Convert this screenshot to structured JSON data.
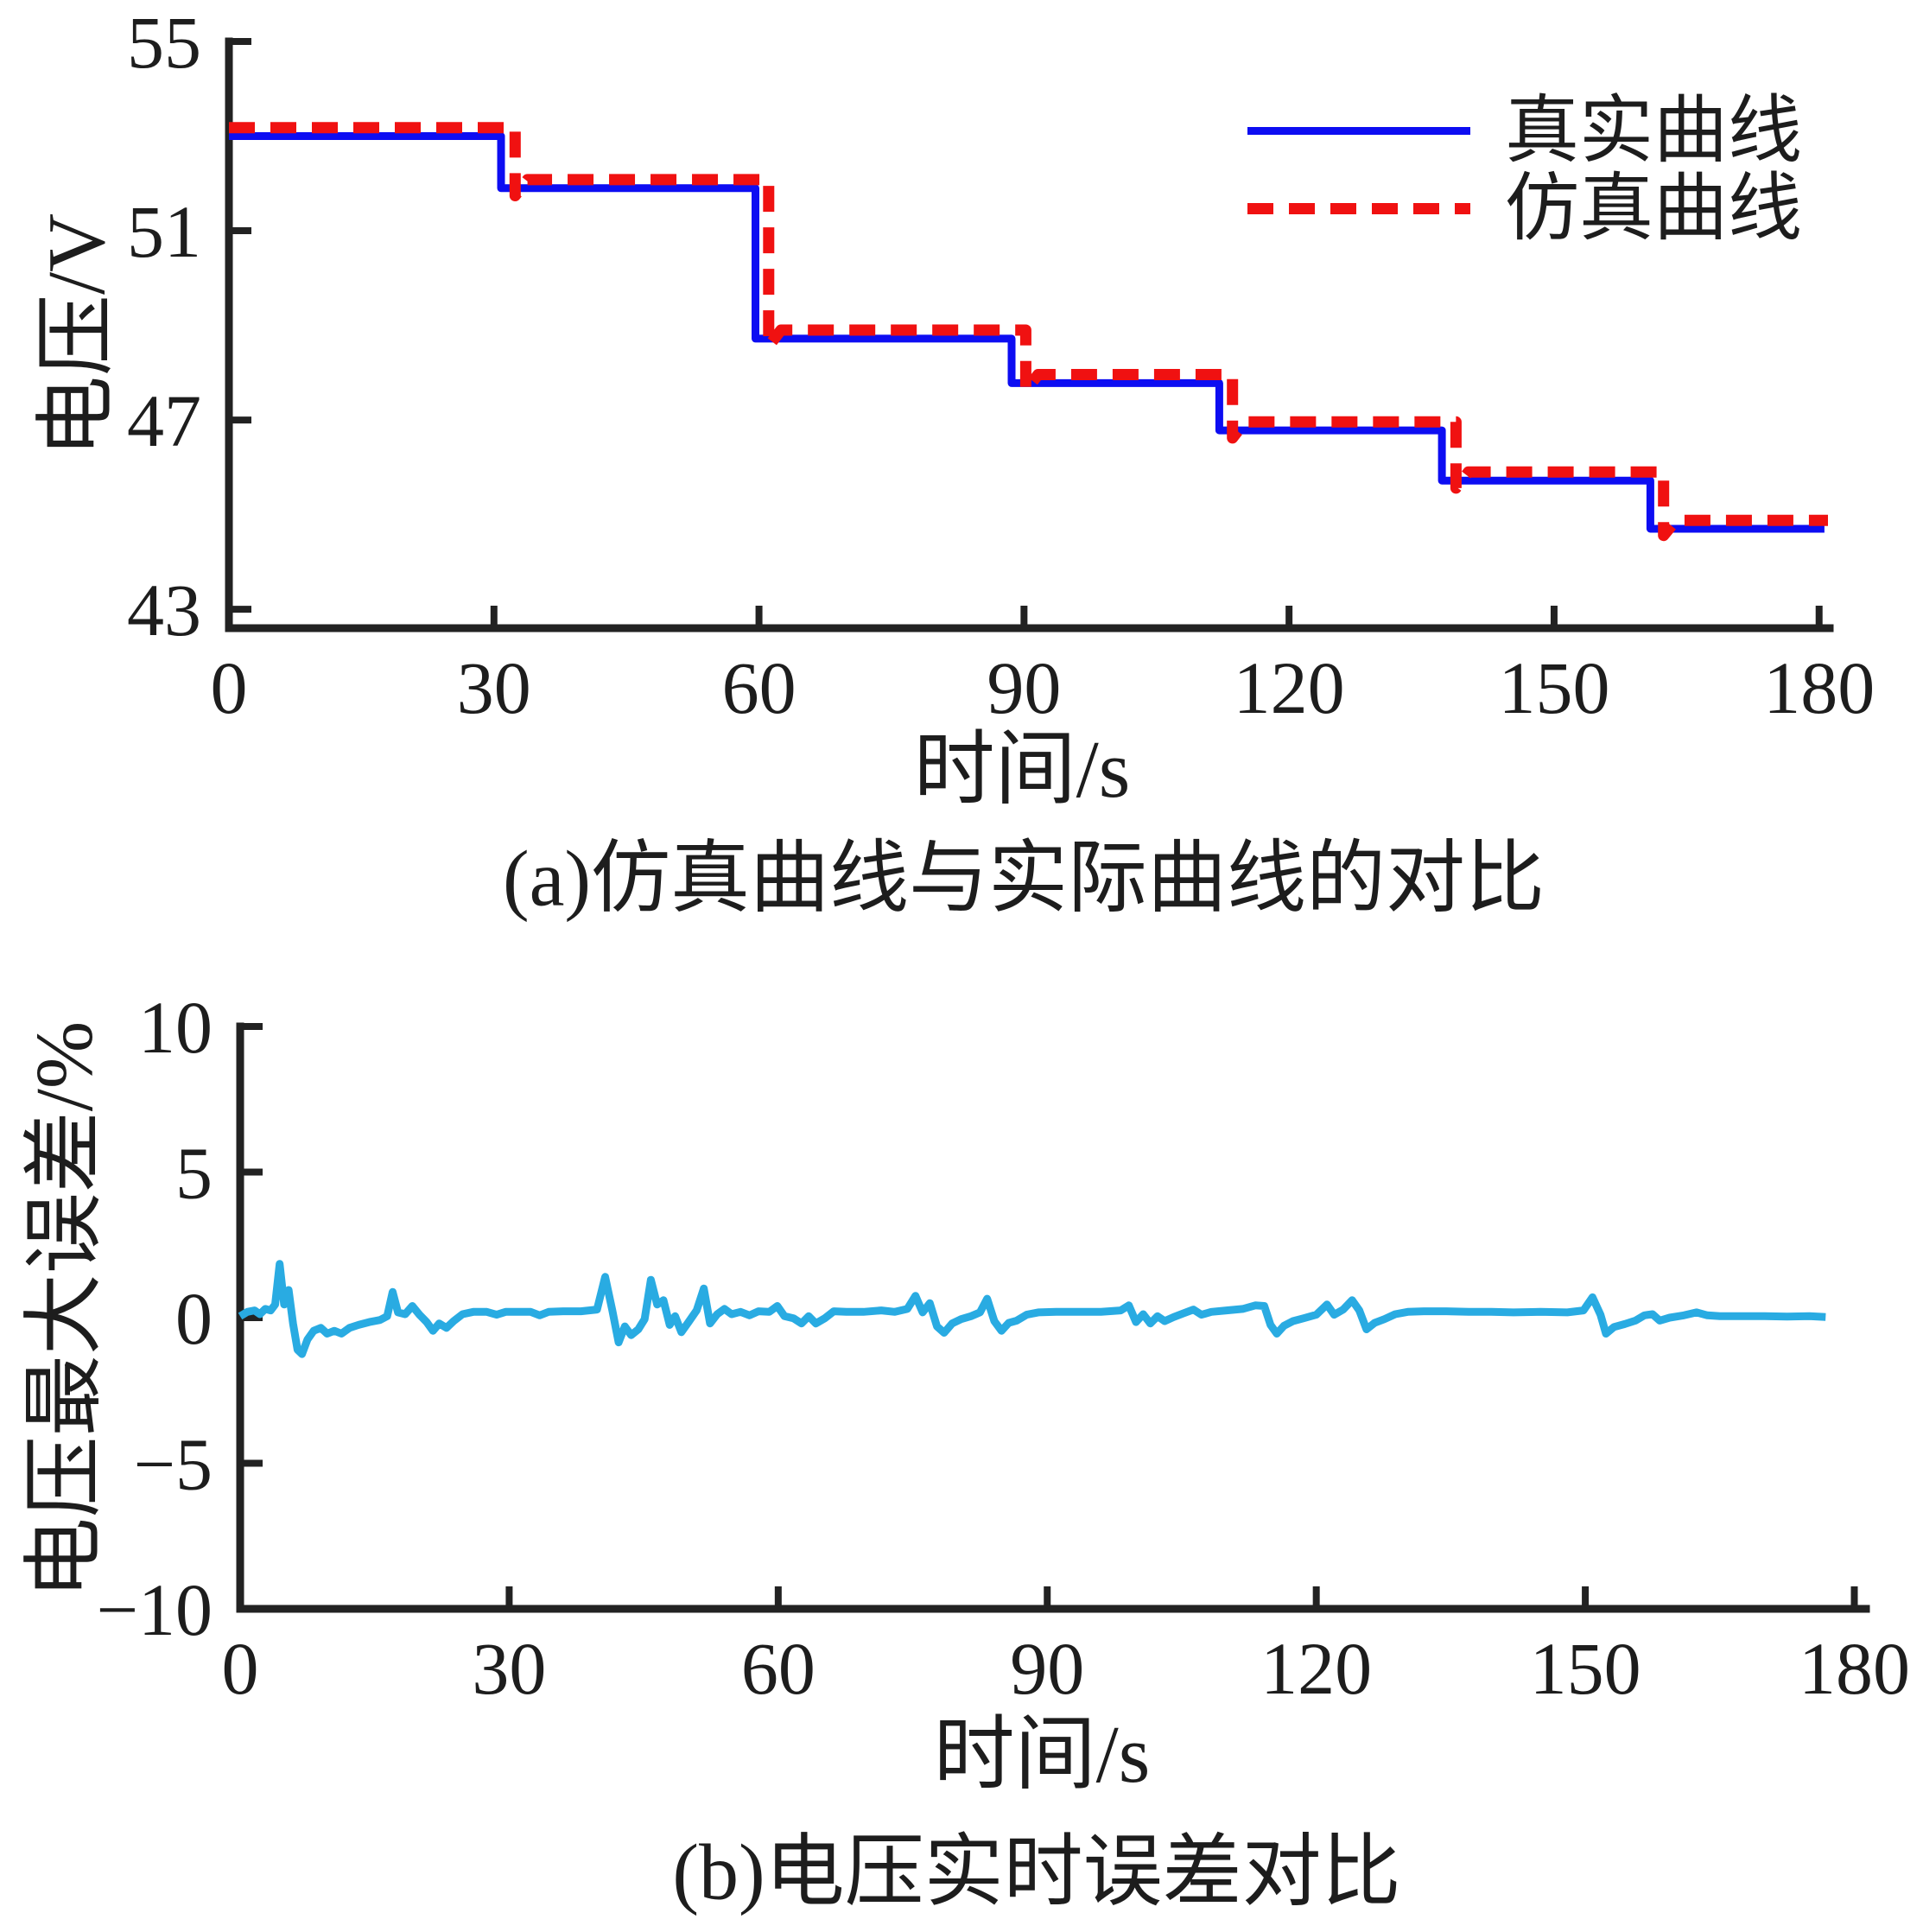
{
  "figure": {
    "background_color": "#ffffff",
    "text_color": "#1d1d1d",
    "axis_color": "#222222"
  },
  "chart_data": [
    {
      "id": "a",
      "type": "line",
      "caption": "(a)仿真曲线与实际曲线的对比",
      "xlabel": "时间/s",
      "ylabel": "电压/V",
      "xlim": [
        0,
        181.2
      ],
      "ylim": [
        42.6,
        55
      ],
      "xticks": [
        0,
        30,
        60,
        90,
        120,
        150,
        180
      ],
      "yticks": [
        55,
        51,
        47,
        43
      ],
      "grid": false,
      "legend": {
        "position": "top-right",
        "box": false,
        "entries": [
          {
            "label": "真实曲线",
            "color": "#0d0df2",
            "dash": false
          },
          {
            "label": "仿真曲线",
            "color": "#f01111",
            "dash": true
          }
        ]
      },
      "series": [
        {
          "name": "真实曲线",
          "color": "#0d0df2",
          "dash": false,
          "width": 9,
          "points": [
            [
              0,
              53.0
            ],
            [
              30.8,
              53.0
            ],
            [
              30.8,
              51.9
            ],
            [
              59.6,
              51.9
            ],
            [
              59.6,
              48.72
            ],
            [
              88.6,
              48.72
            ],
            [
              88.6,
              47.78
            ],
            [
              112.1,
              47.78
            ],
            [
              112.1,
              46.78
            ],
            [
              137.3,
              46.78
            ],
            [
              137.3,
              45.72
            ],
            [
              160.9,
              45.72
            ],
            [
              160.9,
              44.7
            ],
            [
              180.6,
              44.7
            ]
          ]
        },
        {
          "name": "仿真曲线",
          "color": "#f01111",
          "dash": true,
          "width": 13,
          "points": [
            [
              0,
              53.18
            ],
            [
              32.4,
              53.18
            ],
            [
              32.4,
              51.74
            ],
            [
              33.8,
              52.08
            ],
            [
              61.1,
              52.08
            ],
            [
              61.1,
              48.56
            ],
            [
              62.5,
              48.9
            ],
            [
              90.2,
              48.9
            ],
            [
              90.2,
              47.62
            ],
            [
              91.6,
              47.96
            ],
            [
              113.6,
              47.96
            ],
            [
              113.6,
              46.62
            ],
            [
              115,
              46.96
            ],
            [
              138.9,
              46.96
            ],
            [
              138.9,
              45.56
            ],
            [
              140.3,
              45.9
            ],
            [
              162.4,
              45.9
            ],
            [
              162.4,
              44.56
            ],
            [
              163.8,
              44.88
            ],
            [
              181,
              44.88
            ]
          ]
        }
      ]
    },
    {
      "id": "b",
      "type": "line",
      "caption": "(b)电压实时误差对比",
      "xlabel": "时间/s",
      "ylabel": "电压最大误差/%",
      "xlim": [
        0,
        181.3
      ],
      "ylim": [
        -10,
        10
      ],
      "xticks": [
        0,
        30,
        60,
        90,
        120,
        150,
        180
      ],
      "yticks": [
        10,
        5,
        0,
        -5,
        -10
      ],
      "grid": false,
      "series": [
        {
          "name": "电压实时误差",
          "color": "#29abe2",
          "dash": false,
          "width": 9,
          "points": [
            [
              0,
              0.05
            ],
            [
              0.8,
              0.2
            ],
            [
              1.6,
              0.25
            ],
            [
              2.2,
              0.12
            ],
            [
              2.8,
              0.3
            ],
            [
              3.4,
              0.25
            ],
            [
              3.9,
              0.45
            ],
            [
              4.4,
              1.85
            ],
            [
              4.9,
              0.45
            ],
            [
              5.4,
              0.95
            ],
            [
              5.9,
              -0.2
            ],
            [
              6.4,
              -1.1
            ],
            [
              6.9,
              -1.25
            ],
            [
              7.5,
              -0.75
            ],
            [
              8.2,
              -0.45
            ],
            [
              9,
              -0.35
            ],
            [
              9.7,
              -0.55
            ],
            [
              10.5,
              -0.45
            ],
            [
              11.3,
              -0.55
            ],
            [
              12.2,
              -0.35
            ],
            [
              13.2,
              -0.25
            ],
            [
              14.4,
              -0.15
            ],
            [
              15.6,
              -0.08
            ],
            [
              16.4,
              0.05
            ],
            [
              17,
              0.88
            ],
            [
              17.6,
              0.18
            ],
            [
              18.4,
              0.12
            ],
            [
              19.2,
              0.4
            ],
            [
              20,
              0.1
            ],
            [
              20.8,
              -0.15
            ],
            [
              21.5,
              -0.45
            ],
            [
              22.2,
              -0.2
            ],
            [
              23,
              -0.35
            ],
            [
              23.8,
              -0.12
            ],
            [
              24.8,
              0.12
            ],
            [
              26,
              0.2
            ],
            [
              27.5,
              0.2
            ],
            [
              28.6,
              0.1
            ],
            [
              29.6,
              0.2
            ],
            [
              31,
              0.2
            ],
            [
              32.4,
              0.2
            ],
            [
              33.4,
              0.08
            ],
            [
              34.4,
              0.2
            ],
            [
              36,
              0.22
            ],
            [
              38,
              0.22
            ],
            [
              39.8,
              0.28
            ],
            [
              40.7,
              1.4
            ],
            [
              41.5,
              0.25
            ],
            [
              42.2,
              -0.85
            ],
            [
              42.9,
              -0.3
            ],
            [
              43.6,
              -0.6
            ],
            [
              44.4,
              -0.4
            ],
            [
              45.1,
              -0.05
            ],
            [
              45.8,
              1.3
            ],
            [
              46.5,
              0.45
            ],
            [
              47.2,
              0.6
            ],
            [
              47.9,
              -0.25
            ],
            [
              48.5,
              0.05
            ],
            [
              49.2,
              -0.5
            ],
            [
              50,
              -0.15
            ],
            [
              50.9,
              0.25
            ],
            [
              51.7,
              1.0
            ],
            [
              52.4,
              -0.2
            ],
            [
              53.2,
              0.12
            ],
            [
              54,
              0.3
            ],
            [
              54.8,
              0.12
            ],
            [
              55.8,
              0.2
            ],
            [
              56.8,
              0.08
            ],
            [
              57.8,
              0.22
            ],
            [
              59,
              0.2
            ],
            [
              59.9,
              0.4
            ],
            [
              60.7,
              0.05
            ],
            [
              61.7,
              -0.02
            ],
            [
              62.6,
              -0.2
            ],
            [
              63.4,
              0.05
            ],
            [
              64.2,
              -0.2
            ],
            [
              65.2,
              -0.02
            ],
            [
              66.2,
              0.22
            ],
            [
              67.6,
              0.2
            ],
            [
              69.5,
              0.2
            ],
            [
              71.5,
              0.25
            ],
            [
              73,
              0.2
            ],
            [
              74.4,
              0.3
            ],
            [
              75.3,
              0.75
            ],
            [
              76.1,
              0.18
            ],
            [
              76.9,
              0.5
            ],
            [
              77.7,
              -0.3
            ],
            [
              78.5,
              -0.52
            ],
            [
              79.4,
              -0.2
            ],
            [
              80.4,
              -0.05
            ],
            [
              81.5,
              0.05
            ],
            [
              82.5,
              0.18
            ],
            [
              83.3,
              0.65
            ],
            [
              84.1,
              -0.12
            ],
            [
              84.9,
              -0.45
            ],
            [
              85.7,
              -0.18
            ],
            [
              86.6,
              -0.1
            ],
            [
              87.7,
              0.1
            ],
            [
              89,
              0.18
            ],
            [
              91,
              0.2
            ],
            [
              93.5,
              0.2
            ],
            [
              96,
              0.2
            ],
            [
              98.2,
              0.25
            ],
            [
              99.1,
              0.42
            ],
            [
              99.9,
              -0.15
            ],
            [
              100.7,
              0.12
            ],
            [
              101.5,
              -0.2
            ],
            [
              102.3,
              0.05
            ],
            [
              103.1,
              -0.12
            ],
            [
              104.1,
              0.02
            ],
            [
              105.2,
              0.15
            ],
            [
              106.3,
              0.28
            ],
            [
              107.2,
              0.1
            ],
            [
              108.3,
              0.2
            ],
            [
              110,
              0.25
            ],
            [
              111.8,
              0.3
            ],
            [
              113.2,
              0.42
            ],
            [
              114.2,
              0.4
            ],
            [
              114.9,
              -0.25
            ],
            [
              115.6,
              -0.55
            ],
            [
              116.4,
              -0.28
            ],
            [
              117.4,
              -0.12
            ],
            [
              118.6,
              -0.02
            ],
            [
              120,
              0.1
            ],
            [
              121.2,
              0.45
            ],
            [
              122,
              0.1
            ],
            [
              123,
              0.28
            ],
            [
              124,
              0.6
            ],
            [
              124.8,
              0.25
            ],
            [
              125.6,
              -0.4
            ],
            [
              126.5,
              -0.18
            ],
            [
              127.6,
              -0.05
            ],
            [
              128.8,
              0.12
            ],
            [
              130.2,
              0.2
            ],
            [
              132,
              0.22
            ],
            [
              134.5,
              0.22
            ],
            [
              137,
              0.2
            ],
            [
              139.5,
              0.2
            ],
            [
              142,
              0.18
            ],
            [
              145,
              0.2
            ],
            [
              148,
              0.18
            ],
            [
              149.8,
              0.25
            ],
            [
              150.8,
              0.7
            ],
            [
              151.7,
              0.1
            ],
            [
              152.3,
              -0.55
            ],
            [
              153.2,
              -0.32
            ],
            [
              154.4,
              -0.22
            ],
            [
              155.6,
              -0.1
            ],
            [
              156.6,
              0.08
            ],
            [
              157.5,
              0.12
            ],
            [
              158.3,
              -0.1
            ],
            [
              159.4,
              0
            ],
            [
              161,
              0.08
            ],
            [
              162.4,
              0.18
            ],
            [
              163.6,
              0.08
            ],
            [
              165,
              0.05
            ],
            [
              167.5,
              0.05
            ],
            [
              170,
              0.05
            ],
            [
              172.5,
              0.04
            ],
            [
              175,
              0.05
            ],
            [
              176.8,
              0.02
            ]
          ]
        }
      ]
    }
  ]
}
